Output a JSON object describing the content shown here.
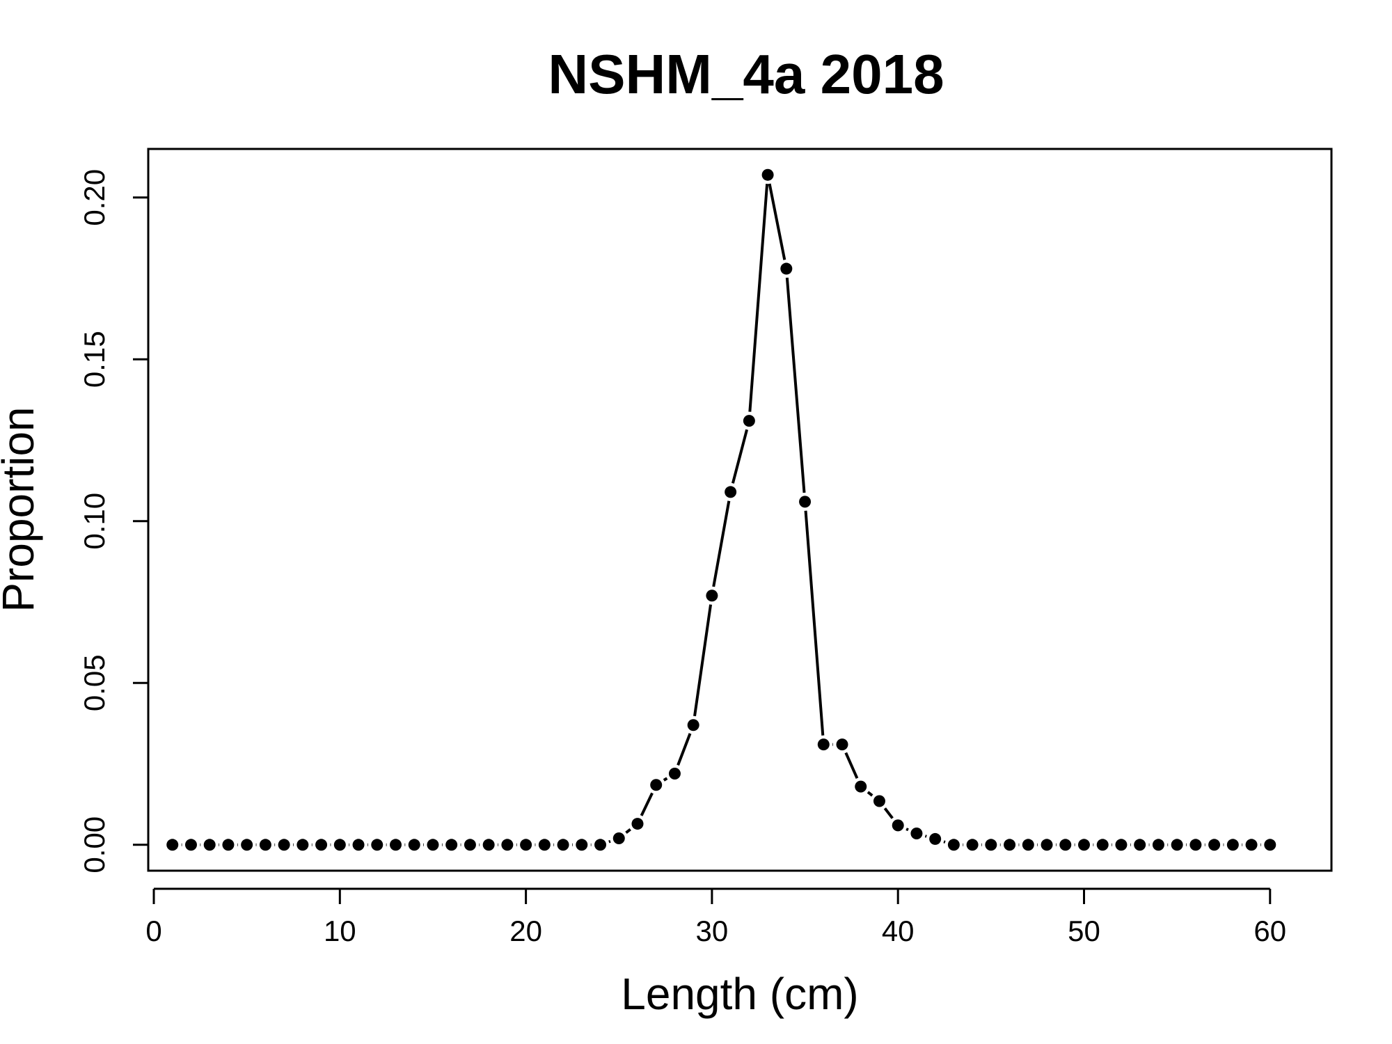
{
  "chart_data": {
    "type": "line",
    "title": "NSHM_4a 2018",
    "xlabel": "Length (cm)",
    "ylabel": "Proportion",
    "xlim": [
      -0.3,
      63.3
    ],
    "ylim": [
      -0.008,
      0.215
    ],
    "x_ticks": [
      0,
      10,
      20,
      30,
      40,
      50,
      60
    ],
    "x_tick_labels": [
      "0",
      "10",
      "20",
      "30",
      "40",
      "50",
      "60"
    ],
    "y_ticks": [
      0.0,
      0.05,
      0.1,
      0.15,
      0.2
    ],
    "y_tick_labels": [
      "0.00",
      "0.05",
      "0.10",
      "0.15",
      "0.20"
    ],
    "grid": false,
    "legend": "none",
    "colors": {
      "line": "#000000",
      "point": "#000000"
    },
    "series": [
      {
        "x": [
          1,
          2,
          3,
          4,
          5,
          6,
          7,
          8,
          9,
          10,
          11,
          12,
          13,
          14,
          15,
          16,
          17,
          18,
          19,
          20,
          21,
          22,
          23,
          24,
          25,
          26,
          27,
          28,
          29,
          30,
          31,
          32,
          33,
          34,
          35,
          36,
          37,
          38,
          39,
          40,
          41,
          42,
          43,
          44,
          45,
          46,
          47,
          48,
          49,
          50,
          51,
          52,
          53,
          54,
          55,
          56,
          57,
          58,
          59,
          60
        ],
        "y": [
          0,
          0,
          0,
          0,
          0,
          0,
          0,
          0,
          0,
          0,
          0,
          0,
          0,
          0,
          0,
          0,
          0,
          0,
          0,
          0,
          0,
          0,
          0,
          0,
          0.002,
          0.0065,
          0.0185,
          0.022,
          0.037,
          0.077,
          0.109,
          0.131,
          0.207,
          0.178,
          0.106,
          0.031,
          0.031,
          0.018,
          0.0135,
          0.006,
          0.0035,
          0.0018,
          0,
          0,
          0,
          0,
          0,
          0,
          0,
          0,
          0,
          0,
          0,
          0,
          0,
          0,
          0,
          0,
          0,
          0
        ]
      }
    ]
  }
}
